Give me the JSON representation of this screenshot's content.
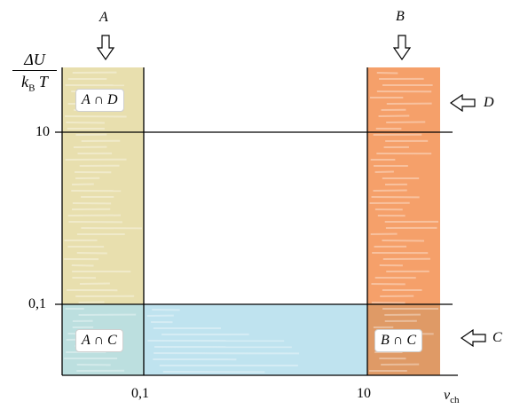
{
  "ylabel": {
    "numerator": "ΔU",
    "den_k": "k",
    "den_sub": "B",
    "den_T": "T"
  },
  "xlabel": {
    "main": "v",
    "sub": "ch"
  },
  "x_ticks": [
    "0,1",
    "10"
  ],
  "y_ticks": [
    "10",
    "0,1"
  ],
  "arrows": {
    "top_left": "A",
    "top_right": "B",
    "right_upper": "D",
    "right_lower": "C"
  },
  "regions": {
    "a_and_d": "A ∩ D",
    "a_and_c": "A ∩ C",
    "b_and_c": "B ∩ C"
  },
  "colors": {
    "region_a": "#e8dfae",
    "region_b": "#f5a06a",
    "region_c": "#bfe3ef",
    "region_a_and_c": "#bcdfdf",
    "region_b_and_c": "#df9a66",
    "axis": "#000000"
  }
}
